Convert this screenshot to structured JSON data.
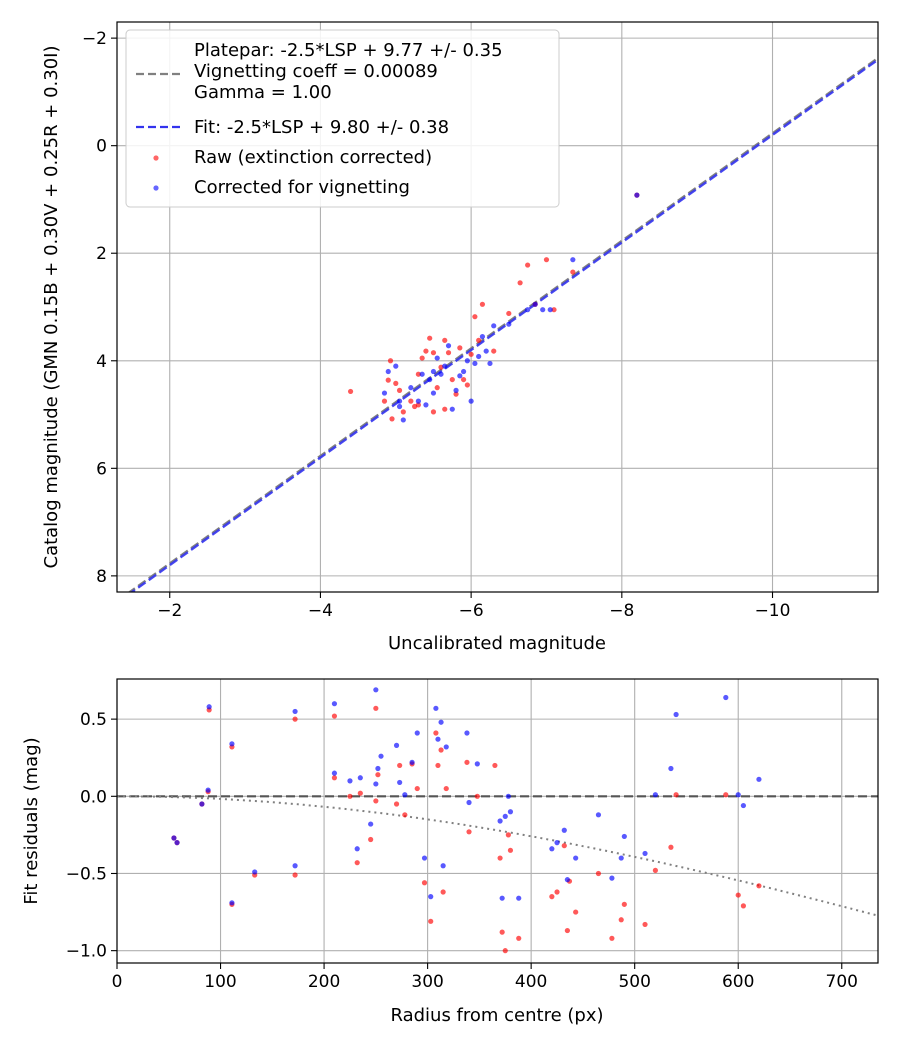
{
  "colors": {
    "raw": "#ff0000",
    "corrected": "#0000ff",
    "platepar_line": "#808080",
    "fit_line": "#3333ee",
    "grid": "#b0b0b0",
    "vignetting_curve": "#808080"
  },
  "chart_data": [
    {
      "type": "scatter",
      "xlabel": "Uncalibrated magnitude",
      "ylabel": "Catalog magnitude (GMN 0.15B + 0.30V + 0.25R + 0.30I)",
      "xlim": [
        -1.3,
        -11.4
      ],
      "ylim": [
        8.3,
        -2.3
      ],
      "x_inverted": true,
      "y_inverted": true,
      "xticks": [
        -2,
        -4,
        -6,
        -8,
        -10
      ],
      "xtick_labels": [
        "−2",
        "−4",
        "−6",
        "−8",
        "−10"
      ],
      "yticks": [
        -2,
        0,
        2,
        4,
        6,
        8
      ],
      "ytick_labels": [
        "−2",
        "0",
        "2",
        "4",
        "6",
        "8"
      ],
      "grid": true,
      "legend_position": "top-left",
      "legend": [
        {
          "label": "Platepar: -2.5*LSP + 9.77 +/- 0.35\nVignetting coeff = 0.00089\nGamma = 1.00",
          "style": "dashed-line",
          "color": "#808080"
        },
        {
          "label": "Fit: -2.5*LSP + 9.80 +/- 0.38",
          "style": "dashed-line",
          "color": "#3333ee"
        },
        {
          "label": "Raw (extinction corrected)",
          "style": "point",
          "color": "#ff0000"
        },
        {
          "label": "Corrected for vignetting",
          "style": "point",
          "color": "#0000ff"
        }
      ],
      "lines": [
        {
          "name": "platepar",
          "slope": 1,
          "intercept": 9.77,
          "style": "dashed",
          "color": "#808080"
        },
        {
          "name": "fit",
          "slope": 1,
          "intercept": 9.8,
          "style": "dashed",
          "color": "#3333ee"
        }
      ],
      "series": [
        {
          "color": "#ff0000",
          "points": [
            [
              -4.4,
              4.57
            ],
            [
              -4.85,
              4.75
            ],
            [
              -4.9,
              4.36
            ],
            [
              -4.93,
              4.0
            ],
            [
              -4.95,
              5.08
            ],
            [
              -5.0,
              4.42
            ],
            [
              -5.05,
              4.55
            ],
            [
              -5.1,
              4.95
            ],
            [
              -5.2,
              4.75
            ],
            [
              -5.25,
              4.85
            ],
            [
              -5.3,
              4.25
            ],
            [
              -5.35,
              3.95
            ],
            [
              -5.4,
              3.82
            ],
            [
              -5.45,
              3.58
            ],
            [
              -5.5,
              3.85
            ],
            [
              -5.5,
              4.95
            ],
            [
              -5.55,
              4.5
            ],
            [
              -5.6,
              4.12
            ],
            [
              -5.65,
              3.62
            ],
            [
              -5.7,
              3.85
            ],
            [
              -5.75,
              4.35
            ],
            [
              -5.8,
              4.62
            ],
            [
              -5.85,
              3.76
            ],
            [
              -5.9,
              4.35
            ],
            [
              -5.95,
              4.45
            ],
            [
              -6.0,
              3.88
            ],
            [
              -6.05,
              3.18
            ],
            [
              -6.1,
              3.62
            ],
            [
              -6.15,
              2.95
            ],
            [
              -6.3,
              3.82
            ],
            [
              -6.5,
              3.12
            ],
            [
              -6.65,
              2.55
            ],
            [
              -6.75,
              2.22
            ],
            [
              -6.85,
              2.95
            ],
            [
              -7.0,
              2.12
            ],
            [
              -7.35,
              2.35
            ],
            [
              -7.1,
              3.05
            ],
            [
              -8.2,
              0.92
            ],
            [
              -5.3,
              4.82
            ],
            [
              -5.65,
              4.9
            ]
          ]
        },
        {
          "color": "#0000ff",
          "points": [
            [
              -4.85,
              4.6
            ],
            [
              -4.9,
              4.2
            ],
            [
              -5.0,
              4.1
            ],
            [
              -5.05,
              4.85
            ],
            [
              -5.1,
              5.1
            ],
            [
              -5.2,
              4.5
            ],
            [
              -5.3,
              4.75
            ],
            [
              -5.35,
              4.25
            ],
            [
              -5.4,
              4.82
            ],
            [
              -5.45,
              4.35
            ],
            [
              -5.5,
              4.6
            ],
            [
              -5.55,
              3.95
            ],
            [
              -5.6,
              4.25
            ],
            [
              -5.65,
              4.1
            ],
            [
              -5.7,
              3.72
            ],
            [
              -5.75,
              4.9
            ],
            [
              -5.8,
              4.55
            ],
            [
              -5.85,
              4.28
            ],
            [
              -5.9,
              4.2
            ],
            [
              -5.95,
              4.0
            ],
            [
              -6.0,
              4.75
            ],
            [
              -6.05,
              4.05
            ],
            [
              -6.1,
              3.92
            ],
            [
              -6.15,
              3.55
            ],
            [
              -6.2,
              3.82
            ],
            [
              -6.25,
              4.05
            ],
            [
              -6.3,
              3.35
            ],
            [
              -6.5,
              3.32
            ],
            [
              -6.75,
              3.05
            ],
            [
              -6.85,
              2.95
            ],
            [
              -6.95,
              3.05
            ],
            [
              -7.05,
              3.05
            ],
            [
              -7.35,
              2.12
            ],
            [
              -8.2,
              0.92
            ],
            [
              -5.05,
              4.75
            ],
            [
              -5.5,
              4.2
            ]
          ]
        }
      ]
    },
    {
      "type": "scatter",
      "xlabel": "Radius from centre (px)",
      "ylabel": "Fit residuals (mag)",
      "xlim": [
        0,
        735
      ],
      "ylim": [
        -1.08,
        0.76
      ],
      "xticks": [
        0,
        100,
        200,
        300,
        400,
        500,
        600,
        700
      ],
      "xtick_labels": [
        "0",
        "100",
        "200",
        "300",
        "400",
        "500",
        "600",
        "700"
      ],
      "yticks": [
        0.5,
        0.0,
        -0.5,
        -1.0
      ],
      "ytick_labels": [
        "0.5",
        "0.0",
        "−0.5",
        "−1.0"
      ],
      "grid": true,
      "reference_line": {
        "y": 0,
        "style": "dashed",
        "color": "#555555"
      },
      "vignetting_curve": {
        "coeff": 0.00089,
        "style": "dotted",
        "color": "#808080"
      },
      "series": [
        {
          "color": "#ff0000",
          "points": [
            [
              55,
              -0.27
            ],
            [
              58,
              -0.3
            ],
            [
              82,
              -0.05
            ],
            [
              88,
              0.03
            ],
            [
              89,
              0.56
            ],
            [
              111,
              0.32
            ],
            [
              111,
              -0.7
            ],
            [
              133,
              -0.51
            ],
            [
              172,
              0.5
            ],
            [
              172,
              -0.51
            ],
            [
              210,
              0.52
            ],
            [
              210,
              0.12
            ],
            [
              225,
              0.0
            ],
            [
              232,
              -0.43
            ],
            [
              235,
              0.02
            ],
            [
              245,
              -0.28
            ],
            [
              250,
              0.57
            ],
            [
              250,
              -0.03
            ],
            [
              252,
              0.14
            ],
            [
              270,
              -0.05
            ],
            [
              273,
              0.2
            ],
            [
              278,
              -0.12
            ],
            [
              285,
              0.21
            ],
            [
              290,
              0.05
            ],
            [
              297,
              -0.56
            ],
            [
              303,
              -0.81
            ],
            [
              308,
              0.41
            ],
            [
              310,
              0.2
            ],
            [
              313,
              0.3
            ],
            [
              315,
              -0.62
            ],
            [
              318,
              0.05
            ],
            [
              338,
              0.22
            ],
            [
              340,
              -0.23
            ],
            [
              348,
              0.0
            ],
            [
              365,
              0.2
            ],
            [
              370,
              -0.4
            ],
            [
              372,
              -0.88
            ],
            [
              375,
              -1.0
            ],
            [
              378,
              -0.25
            ],
            [
              380,
              -0.35
            ],
            [
              388,
              -0.92
            ],
            [
              420,
              -0.65
            ],
            [
              425,
              -0.62
            ],
            [
              432,
              -0.32
            ],
            [
              435,
              -0.87
            ],
            [
              437,
              -0.55
            ],
            [
              443,
              -0.75
            ],
            [
              465,
              -0.5
            ],
            [
              478,
              -0.92
            ],
            [
              487,
              -0.8
            ],
            [
              490,
              -0.7
            ],
            [
              510,
              -0.83
            ],
            [
              520,
              -0.48
            ],
            [
              535,
              -0.33
            ],
            [
              540,
              0.01
            ],
            [
              588,
              0.01
            ],
            [
              600,
              -0.64
            ],
            [
              605,
              -0.71
            ],
            [
              620,
              -0.58
            ]
          ]
        },
        {
          "color": "#0000ff",
          "points": [
            [
              55,
              -0.27
            ],
            [
              58,
              -0.3
            ],
            [
              82,
              -0.05
            ],
            [
              88,
              0.04
            ],
            [
              89,
              0.58
            ],
            [
              111,
              0.34
            ],
            [
              111,
              -0.69
            ],
            [
              133,
              -0.49
            ],
            [
              172,
              0.55
            ],
            [
              172,
              -0.45
            ],
            [
              210,
              0.6
            ],
            [
              210,
              0.15
            ],
            [
              225,
              0.1
            ],
            [
              232,
              -0.34
            ],
            [
              235,
              0.12
            ],
            [
              245,
              -0.18
            ],
            [
              250,
              0.69
            ],
            [
              250,
              0.08
            ],
            [
              252,
              0.18
            ],
            [
              255,
              0.26
            ],
            [
              270,
              0.33
            ],
            [
              273,
              0.09
            ],
            [
              278,
              0.01
            ],
            [
              285,
              0.22
            ],
            [
              290,
              0.41
            ],
            [
              297,
              -0.4
            ],
            [
              303,
              -0.65
            ],
            [
              308,
              0.57
            ],
            [
              310,
              0.37
            ],
            [
              313,
              0.48
            ],
            [
              315,
              -0.45
            ],
            [
              318,
              0.32
            ],
            [
              338,
              0.41
            ],
            [
              340,
              -0.04
            ],
            [
              348,
              0.21
            ],
            [
              370,
              -0.16
            ],
            [
              372,
              -0.66
            ],
            [
              375,
              -0.13
            ],
            [
              378,
              0.0
            ],
            [
              380,
              -0.1
            ],
            [
              388,
              -0.66
            ],
            [
              420,
              -0.34
            ],
            [
              425,
              -0.3
            ],
            [
              432,
              -0.22
            ],
            [
              435,
              -0.54
            ],
            [
              443,
              -0.4
            ],
            [
              465,
              -0.12
            ],
            [
              478,
              -0.53
            ],
            [
              487,
              -0.4
            ],
            [
              490,
              -0.26
            ],
            [
              510,
              -0.37
            ],
            [
              520,
              0.01
            ],
            [
              535,
              0.18
            ],
            [
              540,
              0.53
            ],
            [
              588,
              0.64
            ],
            [
              600,
              0.01
            ],
            [
              605,
              -0.06
            ],
            [
              620,
              0.11
            ]
          ]
        }
      ]
    }
  ]
}
